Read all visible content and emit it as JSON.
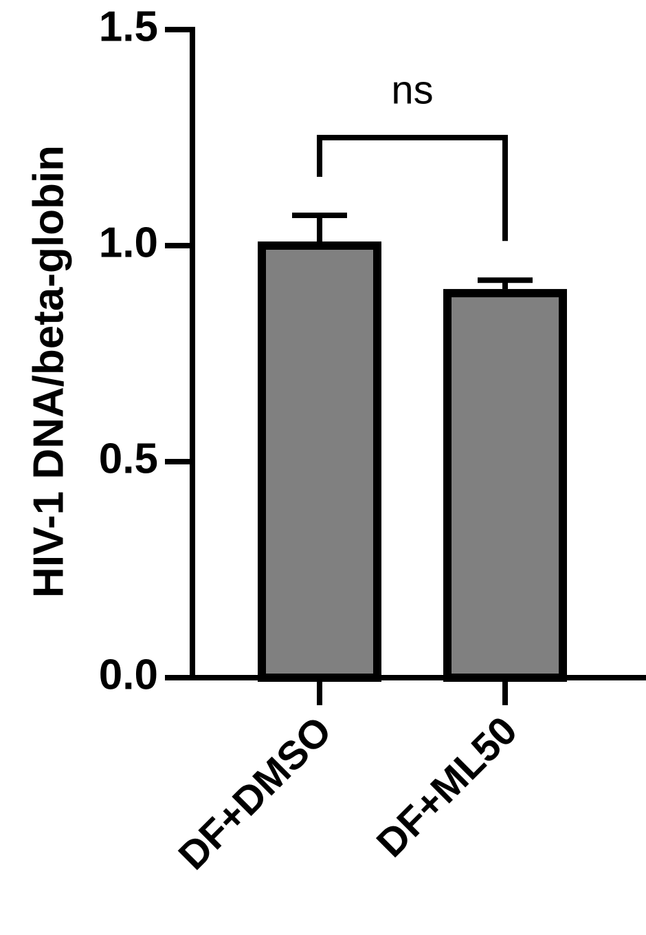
{
  "chart_data": {
    "type": "bar",
    "y_label": "HIV-1 DNA/beta-globin",
    "categories": [
      "DF+DMSO",
      "DF+ML50"
    ],
    "values": [
      1.0,
      0.89
    ],
    "errors": [
      0.07,
      0.03
    ],
    "color": "#808080",
    "ylim": [
      0,
      1.5
    ],
    "yticks": [
      {
        "value": 0,
        "label": "0.0"
      },
      {
        "value": 0.5,
        "label": "0.5"
      },
      {
        "value": 1.0,
        "label": "1.0"
      },
      {
        "value": 1.5,
        "label": "1.5"
      }
    ],
    "annotation": "ns"
  }
}
